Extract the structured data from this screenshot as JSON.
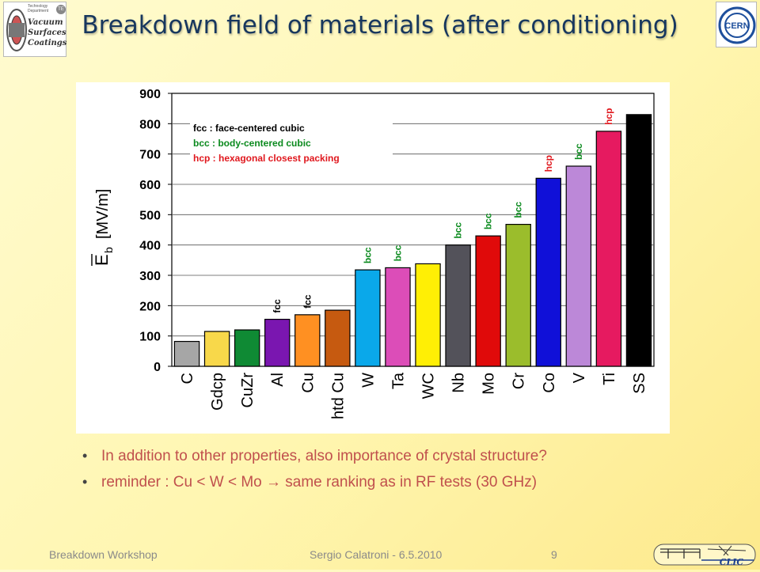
{
  "title": "Breakdown field of materials (after conditioning)",
  "logos": {
    "left": {
      "lines": [
        "Vacuum",
        "Surfaces",
        "Coatings"
      ],
      "dept": "Technology Department",
      "badge": "TE"
    },
    "right": {
      "text": "CERN"
    },
    "bottom_right": {
      "text": "CLIC"
    }
  },
  "chart_data": {
    "type": "bar",
    "categories": [
      "C",
      "Gdcp",
      "CuZr",
      "Al",
      "Cu",
      "htd Cu",
      "W",
      "Ta",
      "WC",
      "Nb",
      "Mo",
      "Cr",
      "Co",
      "V",
      "Ti",
      "SS"
    ],
    "values": [
      82,
      115,
      120,
      155,
      170,
      185,
      318,
      325,
      338,
      400,
      430,
      468,
      620,
      660,
      775,
      830
    ],
    "colors": [
      "#a6a6a6",
      "#f8d84a",
      "#0f8a34",
      "#7a16b0",
      "#ff9022",
      "#c65a10",
      "#0aa8ea",
      "#dc4db8",
      "#ffef05",
      "#53525a",
      "#e00a0a",
      "#9bbd2c",
      "#1010d8",
      "#bc88d8",
      "#e61a60",
      "#000000"
    ],
    "structure_labels": [
      "",
      "",
      "",
      "fcc",
      "fcc",
      "",
      "bcc",
      "bcc",
      "",
      "bcc",
      "bcc",
      "bcc",
      "hcp",
      "bcc",
      "hcp",
      ""
    ],
    "structure_colors": {
      "fcc": "#000000",
      "bcc": "#0b8a1e",
      "hcp": "#e0181e"
    },
    "ylim": [
      0,
      900
    ],
    "yticks": [
      "0",
      "100",
      "200",
      "300",
      "400",
      "500",
      "600",
      "700",
      "800",
      "900"
    ],
    "ylabel_symbol": "E",
    "ylabel_subscript": "b",
    "ylabel_unit": "[MV/m]",
    "xlabel": "",
    "grid": true,
    "legend": [
      {
        "text": "fcc : face-centered cubic",
        "color": "#000000"
      },
      {
        "text": "bcc : body-centered cubic",
        "color": "#0b8a1e"
      },
      {
        "text": "hcp : hexagonal closest packing",
        "color": "#e0181e"
      }
    ]
  },
  "bullets": [
    {
      "text": "In addition to other properties, also importance of crystal structure?"
    },
    {
      "text": "reminder : Cu < W < Mo → same ranking as in RF tests (30 GHz)"
    }
  ],
  "footer": {
    "left": "Breakdown Workshop",
    "center": "Sergio Calatroni - 6.5.2010",
    "page": "9"
  }
}
